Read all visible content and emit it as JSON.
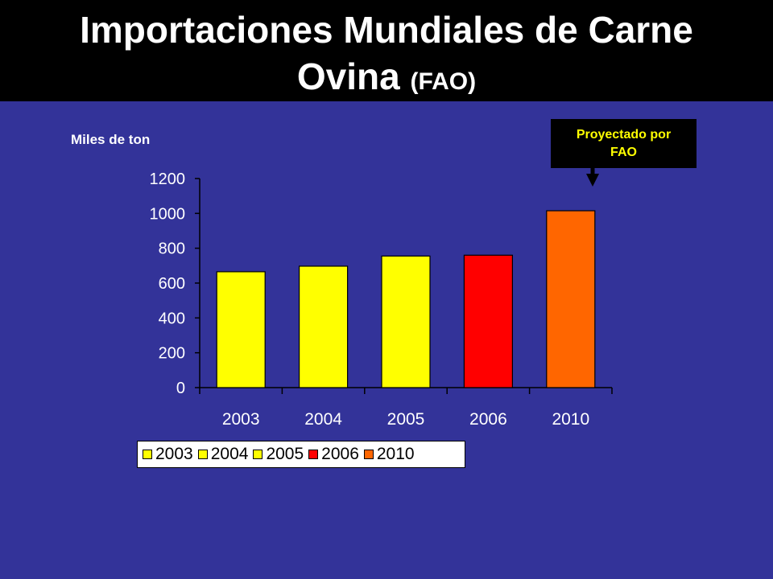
{
  "header": {
    "title_main": "Importaciones Mundiales de Carne Ovina",
    "title_suffix": "(FAO)"
  },
  "callout": {
    "line1": "Proyectado por",
    "line2": "FAO"
  },
  "colors": {
    "background": "#333399",
    "header": "#000000",
    "bar_yellow": "#ffff00",
    "bar_red": "#ff0000",
    "bar_orange": "#ff6600",
    "callout_text": "#ffff00"
  },
  "chart_data": {
    "type": "bar",
    "title": "Importaciones Mundiales de Carne Ovina (FAO)",
    "ylabel": "Miles de ton",
    "xlabel": "",
    "categories": [
      "2003",
      "2004",
      "2005",
      "2006",
      "2010"
    ],
    "values": [
      665,
      697,
      755,
      760,
      1015
    ],
    "bar_colors": [
      "#ffff00",
      "#ffff00",
      "#ffff00",
      "#ff0000",
      "#ff6600"
    ],
    "ylim": [
      0,
      1200
    ],
    "yticks": [
      "0",
      "200",
      "400",
      "600",
      "800",
      "1000",
      "1200"
    ],
    "grid": false,
    "legend": {
      "placement": "bottom",
      "entries": [
        "2003",
        "2004",
        "2005",
        "2006",
        "2010"
      ]
    }
  }
}
